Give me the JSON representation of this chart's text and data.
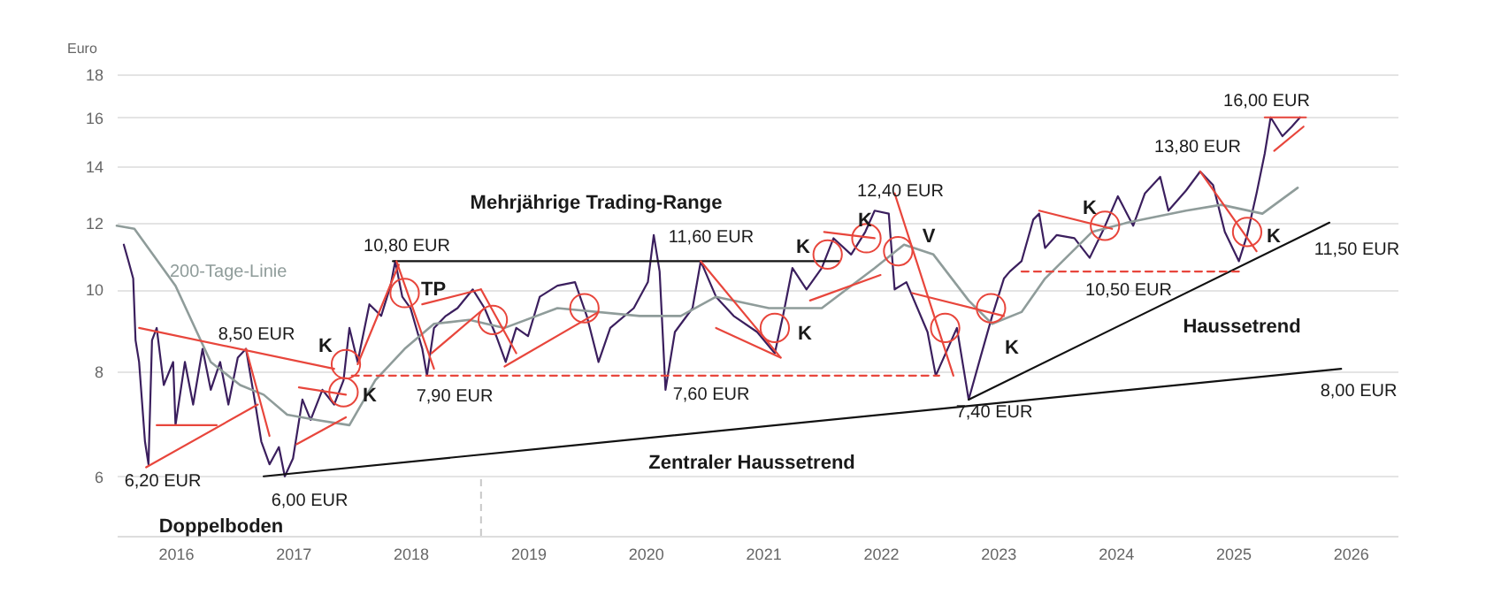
{
  "chart_data": {
    "type": "line",
    "ylabel": "Euro",
    "log": "y",
    "grid": "y",
    "xlim": [
      2015.5,
      2026.4
    ],
    "ylim": [
      5.1,
      18
    ],
    "xticks": [
      2016,
      2017,
      2018,
      2019,
      2020,
      2021,
      2022,
      2023,
      2024,
      2025,
      2026
    ],
    "yticks": [
      6,
      8,
      10,
      12,
      14,
      16,
      18
    ],
    "ref_lines": [
      {
        "axis": "x",
        "value": 2018.6,
        "color": "#c8c8c8",
        "line_style": "dashed"
      }
    ],
    "series": [
      {
        "color": "#3b1f5e",
        "x": [
          2015.56,
          2015.6,
          2015.64,
          2015.66,
          2015.69,
          2015.74,
          2015.77,
          2015.8,
          2015.84,
          2015.9,
          2015.98,
          2016.0,
          2016.08,
          2016.15,
          2016.23,
          2016.3,
          2016.38,
          2016.45,
          2016.53,
          2016.6,
          2016.68,
          2016.73,
          2016.8,
          2016.88,
          2016.93,
          2017.0,
          2017.08,
          2017.15,
          2017.25,
          2017.35,
          2017.43,
          2017.48,
          2017.55,
          2017.65,
          2017.75,
          2017.83,
          2017.87,
          2017.93,
          2018.0,
          2018.1,
          2018.14,
          2018.2,
          2018.3,
          2018.4,
          2018.53,
          2018.63,
          2018.73,
          2018.81,
          2018.9,
          2019.0,
          2019.1,
          2019.25,
          2019.4,
          2019.5,
          2019.6,
          2019.7,
          2019.9,
          2020.02,
          2020.07,
          2020.12,
          2020.17,
          2020.25,
          2020.4,
          2020.47,
          2020.6,
          2020.75,
          2020.95,
          2021.1,
          2021.17,
          2021.25,
          2021.37,
          2021.5,
          2021.6,
          2021.75,
          2021.87,
          2021.95,
          2022.07,
          2022.12,
          2022.22,
          2022.4,
          2022.47,
          2022.65,
          2022.75,
          2022.85,
          2022.95,
          2023.05,
          2023.1,
          2023.2,
          2023.3,
          2023.35,
          2023.4,
          2023.5,
          2023.65,
          2023.78,
          2023.9,
          2024.02,
          2024.15,
          2024.25,
          2024.38,
          2024.45,
          2024.6,
          2024.72,
          2024.83,
          2024.93,
          2025.05,
          2025.12,
          2025.2,
          2025.27,
          2025.32,
          2025.42,
          2025.5,
          2025.57
        ],
        "values": [
          11.3,
          10.8,
          10.3,
          8.7,
          8.2,
          6.6,
          6.2,
          8.7,
          9.0,
          7.7,
          8.2,
          6.9,
          8.2,
          7.3,
          8.5,
          7.6,
          8.2,
          7.3,
          8.3,
          8.5,
          7.3,
          6.6,
          6.2,
          6.5,
          6.0,
          6.3,
          7.4,
          7.0,
          7.6,
          7.3,
          7.8,
          9.0,
          8.2,
          9.6,
          9.3,
          10.1,
          10.8,
          9.8,
          9.5,
          8.5,
          7.9,
          9.0,
          9.3,
          9.5,
          10.0,
          9.5,
          8.8,
          8.2,
          9.0,
          8.8,
          9.8,
          10.1,
          10.2,
          9.3,
          8.2,
          9.0,
          9.5,
          10.2,
          11.6,
          10.5,
          7.6,
          8.9,
          9.5,
          10.8,
          9.8,
          9.3,
          8.9,
          8.4,
          9.3,
          10.6,
          10.0,
          10.6,
          11.5,
          11.0,
          11.7,
          12.4,
          12.3,
          10.0,
          10.2,
          8.9,
          7.9,
          9.0,
          7.4,
          8.3,
          9.3,
          10.3,
          10.5,
          10.8,
          12.1,
          12.3,
          11.2,
          11.6,
          11.5,
          10.9,
          11.8,
          12.9,
          11.9,
          13.0,
          13.6,
          12.4,
          13.1,
          13.8,
          13.3,
          11.7,
          10.8,
          11.6,
          13.0,
          14.5,
          16.0,
          15.2,
          15.6,
          16.0
        ]
      },
      {
        "name": "200-Tage-Linie",
        "color": "#8f9c9a",
        "x": [
          2015.5,
          2015.65,
          2016.0,
          2016.3,
          2016.55,
          2016.75,
          2016.95,
          2017.2,
          2017.48,
          2017.7,
          2017.95,
          2018.2,
          2018.5,
          2018.8,
          2019.25,
          2019.95,
          2020.3,
          2020.6,
          2021.05,
          2021.5,
          2021.95,
          2022.2,
          2022.45,
          2022.75,
          2022.95,
          2023.2,
          2023.4,
          2023.8,
          2024.1,
          2024.6,
          2024.9,
          2025.25,
          2025.55
        ],
        "values": [
          11.9,
          11.8,
          10.1,
          8.2,
          7.7,
          7.5,
          7.1,
          7.0,
          6.9,
          7.8,
          8.5,
          9.1,
          9.2,
          9.0,
          9.5,
          9.3,
          9.3,
          9.8,
          9.5,
          9.5,
          10.6,
          11.3,
          11.0,
          9.7,
          9.1,
          9.4,
          10.3,
          11.7,
          12.0,
          12.4,
          12.6,
          12.3,
          13.2
        ]
      },
      {
        "color": "#111111",
        "x": [
          2017.85,
          2021.65
        ],
        "values": [
          10.8,
          10.8
        ]
      },
      {
        "color": "#111111",
        "x": [
          2016.75,
          2025.92
        ],
        "values": [
          6.0,
          8.05
        ]
      },
      {
        "color": "#111111",
        "x": [
          2022.75,
          2025.82
        ],
        "values": [
          7.4,
          12.0
        ]
      },
      {
        "color": "#e8463c",
        "line_style": "dashed",
        "x": [
          2017.5,
          2022.5
        ],
        "values": [
          7.9,
          7.9
        ]
      },
      {
        "color": "#e8463c",
        "line_style": "dashed",
        "x": [
          2023.2,
          2025.05
        ],
        "values": [
          10.5,
          10.5
        ]
      },
      {
        "color": "#e8463c",
        "x": [
          2015.69,
          2017.35
        ],
        "values": [
          9.0,
          8.05
        ]
      },
      {
        "color": "#e8463c",
        "x": [
          2015.75,
          2016.7
        ],
        "values": [
          6.15,
          7.3
        ]
      },
      {
        "color": "#e8463c",
        "x": [
          2015.84,
          2016.35
        ],
        "values": [
          6.9,
          6.9
        ]
      },
      {
        "color": "#e8463c",
        "x": [
          2016.6,
          2016.8
        ],
        "values": [
          8.5,
          6.7
        ]
      },
      {
        "color": "#e8463c",
        "x": [
          2017.03,
          2017.45
        ],
        "values": [
          6.55,
          7.05
        ]
      },
      {
        "color": "#e8463c",
        "x": [
          2017.05,
          2017.45
        ],
        "values": [
          7.65,
          7.5
        ]
      },
      {
        "color": "#e8463c",
        "x": [
          2017.55,
          2017.9
        ],
        "values": [
          8.15,
          10.7
        ]
      },
      {
        "color": "#e8463c",
        "x": [
          2017.88,
          2018.2
        ],
        "values": [
          10.8,
          8.05
        ]
      },
      {
        "color": "#e8463c",
        "x": [
          2018.1,
          2018.6
        ],
        "values": [
          9.6,
          10.0
        ]
      },
      {
        "color": "#e8463c",
        "x": [
          2018.18,
          2018.63
        ],
        "values": [
          8.4,
          9.5
        ]
      },
      {
        "color": "#e8463c",
        "x": [
          2018.6,
          2018.9
        ],
        "values": [
          10.0,
          8.4
        ]
      },
      {
        "color": "#e8463c",
        "x": [
          2018.8,
          2019.6
        ],
        "values": [
          8.1,
          9.4
        ]
      },
      {
        "color": "#e8463c",
        "x": [
          2020.47,
          2021.15
        ],
        "values": [
          10.8,
          8.3
        ]
      },
      {
        "color": "#e8463c",
        "x": [
          2020.6,
          2021.15
        ],
        "values": [
          9.0,
          8.3
        ]
      },
      {
        "color": "#e8463c",
        "x": [
          2021.4,
          2022.0
        ],
        "values": [
          9.7,
          10.4
        ]
      },
      {
        "color": "#e8463c",
        "x": [
          2021.52,
          2021.95
        ],
        "values": [
          11.7,
          11.5
        ]
      },
      {
        "color": "#e8463c",
        "x": [
          2022.12,
          2022.62
        ],
        "values": [
          13.0,
          7.9
        ]
      },
      {
        "color": "#e8463c",
        "x": [
          2022.27,
          2023.05
        ],
        "values": [
          9.9,
          9.3
        ]
      },
      {
        "color": "#e8463c",
        "x": [
          2023.35,
          2023.97
        ],
        "values": [
          12.4,
          11.8
        ]
      },
      {
        "color": "#e8463c",
        "x": [
          2024.72,
          2025.2
        ],
        "values": [
          13.8,
          11.1
        ]
      },
      {
        "color": "#e8463c",
        "x": [
          2025.27,
          2025.62
        ],
        "values": [
          16.0,
          16.0
        ]
      },
      {
        "color": "#e8463c",
        "x": [
          2025.35,
          2025.6
        ],
        "values": [
          14.6,
          15.6
        ]
      },
      {
        "type": "scatter",
        "marker": "circle",
        "color": "#e8463c",
        "x": [
          2017.45,
          2017.43,
          2017.95,
          2018.7,
          2019.48,
          2021.1,
          2021.55,
          2021.88,
          2022.15,
          2022.55,
          2022.94,
          2023.91,
          2025.12
        ],
        "values": [
          8.15,
          7.55,
          9.9,
          9.2,
          9.5,
          9.0,
          11.0,
          11.5,
          11.1,
          9.0,
          9.5,
          11.9,
          11.7
        ]
      }
    ],
    "annotations": [
      "6,20 EUR",
      "6,00 EUR",
      "8,50 EUR",
      "10,80 EUR",
      "TP",
      "K",
      "K",
      "7,90 EUR",
      "Mehrjährige Trading-Range",
      "Doppelboden",
      "11,60 EUR",
      "7,60 EUR",
      "K",
      "K",
      "K",
      "12,40 EUR",
      "V",
      "Zentraler Haussetrend",
      "7,40 EUR",
      "K",
      "K",
      "10,50 EUR",
      "13,80 EUR",
      "16,00 EUR",
      "K",
      "Haussetrend",
      "11,50 EUR",
      "8,00 EUR"
    ]
  }
}
